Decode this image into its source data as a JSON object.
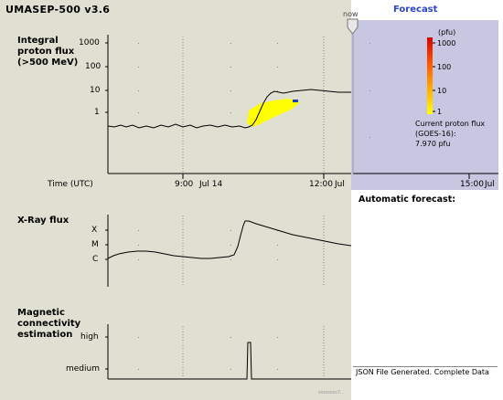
{
  "app": {
    "title": "UMASEP-500 v3.6"
  },
  "proton_panel": {
    "label_lines": [
      "Integral",
      "proton flux",
      "(>500 MeV)"
    ],
    "y_ticks": [
      "1000",
      "100",
      "10",
      "1"
    ],
    "time_label": "Time (UTC)",
    "x_ticks": [
      "9:00",
      "Jul 14",
      "12:00",
      "Jul"
    ]
  },
  "forecast": {
    "title": "Forecast",
    "now_label": "now",
    "colorbar_unit": "(pfu)",
    "colorbar_ticks": [
      "1000",
      "100",
      "10",
      "1"
    ],
    "current_flux_lines": [
      "Current proton flux",
      "(GOES-16):",
      "7.970 pfu"
    ],
    "x_tick": "15:00",
    "x_tick_date": "Jul",
    "automatic_forecast_label": "Automatic forecast:"
  },
  "xray_panel": {
    "label": "X-Ray flux",
    "levels": [
      "X",
      "M",
      "C"
    ]
  },
  "magnetic_panel": {
    "label_lines": [
      "Magnetic",
      "connectivity",
      "estimation"
    ],
    "levels": [
      "high",
      "medium"
    ]
  },
  "status": {
    "message": "JSON File Generated.  Complete Data"
  },
  "footer": {
    "watermark": "ssssssss7..."
  },
  "colors": {
    "panel_bg": "#dfdfd2",
    "forecast_bg": "#c7c7e1",
    "forecast_title": "#2b46c8",
    "prediction_fill": "#ffff00",
    "marker": "#1f3fbf"
  }
}
